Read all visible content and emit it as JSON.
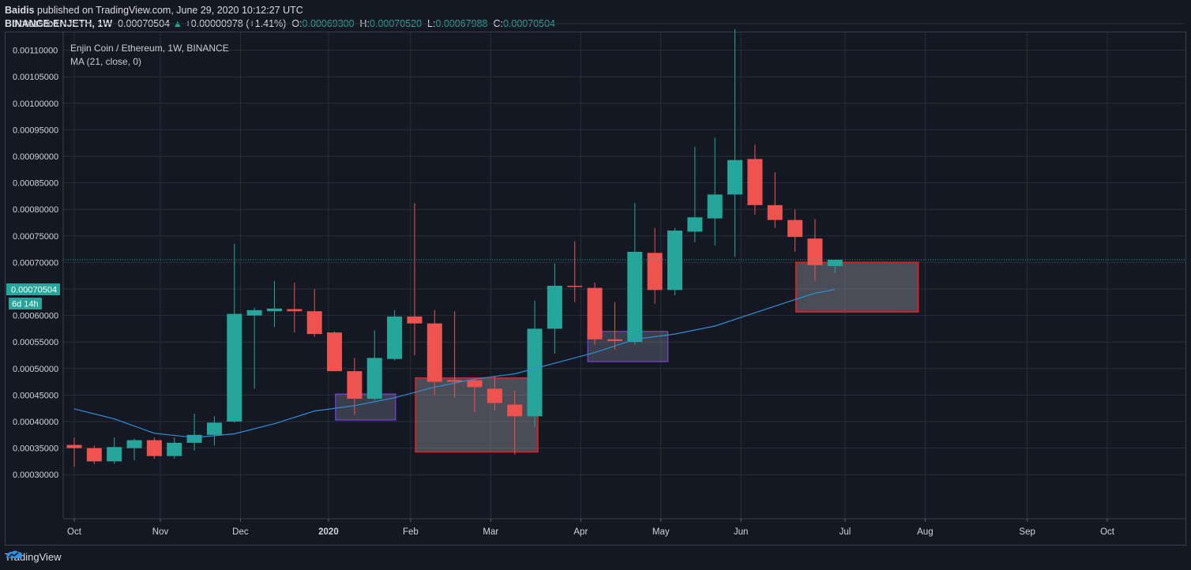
{
  "header": {
    "author": "Baidis",
    "published_text": "published on TradingView.com, June 29, 2020 10:12:27 UTC",
    "symbol": "BINANCE:ENJETH, 1W",
    "last": "0.00070504",
    "change_arrow": "▲",
    "change": "+0.00000978 (+1.41%)",
    "o_label": "O:",
    "o_value": "0.00069300",
    "h_label": "H:",
    "h_value": "0.00070520",
    "l_label": "L:",
    "l_value": "0.00067988",
    "c_label": "C:",
    "c_value": "0.00070504"
  },
  "legend": {
    "title": "Enjin Coin / Ethereum, 1W, BINANCE",
    "indicator": "MA (21, close, 0)"
  },
  "price_tag": {
    "value": "0.00070504",
    "countdown": "6d 14h"
  },
  "footer": {
    "brand": "TradingView"
  },
  "colors": {
    "up": "#26a69a",
    "down": "#ef5350",
    "ma": "#2f8fd8",
    "bg": "#141823",
    "grid": "#2a2e39",
    "box_red": "#c62828",
    "box_purple": "#7b3fe4"
  },
  "chart_data": {
    "type": "candlestick",
    "ylim": [
      0.00027,
      0.00118
    ],
    "y_ticks": [
      "0.00115000",
      "0.00110000",
      "0.00105000",
      "0.00100000",
      "0.00095000",
      "0.00090000",
      "0.00085000",
      "0.00080000",
      "0.00075000",
      "0.00070000",
      "0.00065000",
      "0.00060000",
      "0.00055000",
      "0.00050000",
      "0.00045000",
      "0.00040000",
      "0.00035000",
      "0.00030000"
    ],
    "x_ticks": [
      {
        "label": "Oct",
        "i": 0
      },
      {
        "label": "Nov",
        "i": 4.3
      },
      {
        "label": "Dec",
        "i": 8.3
      },
      {
        "label": "2020",
        "i": 12.7
      },
      {
        "label": "Feb",
        "i": 16.8
      },
      {
        "label": "Mar",
        "i": 20.8
      },
      {
        "label": "Apr",
        "i": 25.3
      },
      {
        "label": "May",
        "i": 29.3
      },
      {
        "label": "Jun",
        "i": 33.3
      },
      {
        "label": "Jul",
        "i": 38.5
      },
      {
        "label": "Aug",
        "i": 42.5
      },
      {
        "label": "Sep",
        "i": 47.6
      },
      {
        "label": "Oct",
        "i": 51.6
      }
    ],
    "candles": [
      {
        "o": 0.000356,
        "h": 0.00037,
        "l": 0.000315,
        "c": 0.00035
      },
      {
        "o": 0.00035,
        "h": 0.000355,
        "l": 0.00032,
        "c": 0.000325
      },
      {
        "o": 0.000325,
        "h": 0.00037,
        "l": 0.00032,
        "c": 0.000352
      },
      {
        "o": 0.00035,
        "h": 0.000368,
        "l": 0.000327,
        "c": 0.000365
      },
      {
        "o": 0.000365,
        "h": 0.00037,
        "l": 0.00033,
        "c": 0.000335
      },
      {
        "o": 0.000335,
        "h": 0.00037,
        "l": 0.00033,
        "c": 0.00036
      },
      {
        "o": 0.00036,
        "h": 0.000415,
        "l": 0.000345,
        "c": 0.000375
      },
      {
        "o": 0.000375,
        "h": 0.00041,
        "l": 0.000355,
        "c": 0.000398
      },
      {
        "o": 0.0004,
        "h": 0.000735,
        "l": 0.000398,
        "c": 0.000603
      },
      {
        "o": 0.0006,
        "h": 0.000615,
        "l": 0.000462,
        "c": 0.00061
      },
      {
        "o": 0.000608,
        "h": 0.000665,
        "l": 0.000578,
        "c": 0.000613
      },
      {
        "o": 0.000612,
        "h": 0.000662,
        "l": 0.000568,
        "c": 0.000608
      },
      {
        "o": 0.000608,
        "h": 0.00065,
        "l": 0.00056,
        "c": 0.000565
      },
      {
        "o": 0.000568,
        "h": 0.00057,
        "l": 0.000495,
        "c": 0.000495
      },
      {
        "o": 0.000495,
        "h": 0.00052,
        "l": 0.000413,
        "c": 0.000443
      },
      {
        "o": 0.000443,
        "h": 0.000572,
        "l": 0.00044,
        "c": 0.00052
      },
      {
        "o": 0.000518,
        "h": 0.00061,
        "l": 0.000515,
        "c": 0.000598
      },
      {
        "o": 0.000598,
        "h": 0.000812,
        "l": 0.000525,
        "c": 0.000585
      },
      {
        "o": 0.000585,
        "h": 0.00061,
        "l": 0.00045,
        "c": 0.000475
      },
      {
        "o": 0.000478,
        "h": 0.000608,
        "l": 0.000445,
        "c": 0.000475
      },
      {
        "o": 0.000478,
        "h": 0.00048,
        "l": 0.000418,
        "c": 0.000465
      },
      {
        "o": 0.000462,
        "h": 0.000485,
        "l": 0.00042,
        "c": 0.000435
      },
      {
        "o": 0.000432,
        "h": 0.000458,
        "l": 0.000338,
        "c": 0.00041
      },
      {
        "o": 0.00041,
        "h": 0.000628,
        "l": 0.00039,
        "c": 0.000575
      },
      {
        "o": 0.000575,
        "h": 0.000698,
        "l": 0.000528,
        "c": 0.000656
      },
      {
        "o": 0.000656,
        "h": 0.00074,
        "l": 0.000625,
        "c": 0.000655
      },
      {
        "o": 0.000652,
        "h": 0.000662,
        "l": 0.000545,
        "c": 0.000555
      },
      {
        "o": 0.000555,
        "h": 0.000625,
        "l": 0.000535,
        "c": 0.000552
      },
      {
        "o": 0.00055,
        "h": 0.000812,
        "l": 0.000545,
        "c": 0.00072
      },
      {
        "o": 0.000718,
        "h": 0.000765,
        "l": 0.000622,
        "c": 0.000648
      },
      {
        "o": 0.000648,
        "h": 0.000765,
        "l": 0.000638,
        "c": 0.00076
      },
      {
        "o": 0.000758,
        "h": 0.000918,
        "l": 0.000738,
        "c": 0.000785
      },
      {
        "o": 0.000783,
        "h": 0.000935,
        "l": 0.000732,
        "c": 0.000828
      },
      {
        "o": 0.000828,
        "h": 0.00114,
        "l": 0.00071,
        "c": 0.000893
      },
      {
        "o": 0.000895,
        "h": 0.000922,
        "l": 0.00079,
        "c": 0.000808
      },
      {
        "o": 0.000808,
        "h": 0.00087,
        "l": 0.000765,
        "c": 0.00078
      },
      {
        "o": 0.00078,
        "h": 0.0008,
        "l": 0.00072,
        "c": 0.000748
      },
      {
        "o": 0.000745,
        "h": 0.000782,
        "l": 0.000665,
        "c": 0.000695
      },
      {
        "o": 0.000693,
        "h": 0.000705,
        "l": 0.00068,
        "c": 0.000705
      }
    ],
    "ma": [
      {
        "i": 0,
        "v": 0.000424
      },
      {
        "i": 2,
        "v": 0.000405
      },
      {
        "i": 4,
        "v": 0.000378
      },
      {
        "i": 6,
        "v": 0.00037
      },
      {
        "i": 8,
        "v": 0.000377
      },
      {
        "i": 10,
        "v": 0.000396
      },
      {
        "i": 12,
        "v": 0.00042
      },
      {
        "i": 14,
        "v": 0.00043
      },
      {
        "i": 16,
        "v": 0.000445
      },
      {
        "i": 18,
        "v": 0.000465
      },
      {
        "i": 20,
        "v": 0.00048
      },
      {
        "i": 22,
        "v": 0.00049
      },
      {
        "i": 24,
        "v": 0.00051
      },
      {
        "i": 26,
        "v": 0.00053
      },
      {
        "i": 28,
        "v": 0.000555
      },
      {
        "i": 30,
        "v": 0.000565
      },
      {
        "i": 32,
        "v": 0.00058
      },
      {
        "i": 34,
        "v": 0.000605
      },
      {
        "i": 36,
        "v": 0.00063
      },
      {
        "i": 37,
        "v": 0.000642
      },
      {
        "i": 38,
        "v": 0.000649
      }
    ],
    "boxes": [
      {
        "kind": "red",
        "from": 17.05,
        "to": 23.15,
        "top": 0.000482,
        "bottom": 0.000343
      },
      {
        "kind": "purple",
        "from": 13.05,
        "to": 16.05,
        "top": 0.000452,
        "bottom": 0.000403
      },
      {
        "kind": "purple",
        "from": 25.65,
        "to": 29.65,
        "top": 0.00057,
        "bottom": 0.000513
      },
      {
        "kind": "red",
        "from": 36.05,
        "to": 42.15,
        "top": 0.0007,
        "bottom": 0.000607
      }
    ]
  }
}
